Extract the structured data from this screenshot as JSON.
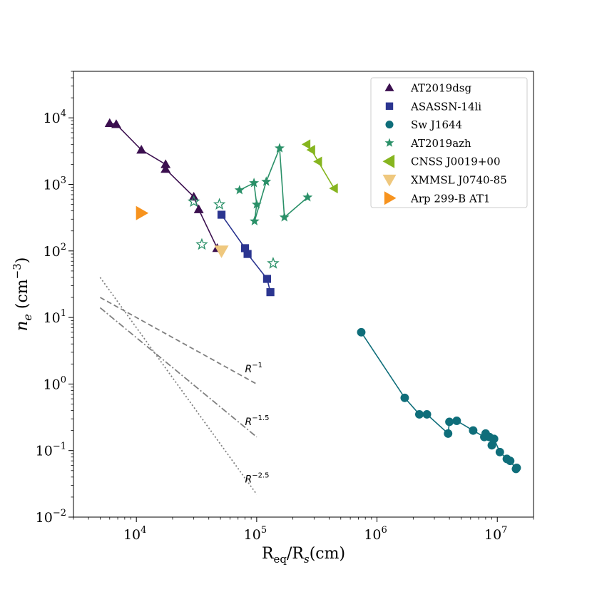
{
  "chart_data": {
    "type": "scatter",
    "x_label": "R_eq/R_s(cm)",
    "y_label": "n_e (cm^-3)",
    "x_scale": "log",
    "y_scale": "log",
    "xlim": [
      3000,
      20000000
    ],
    "ylim": [
      0.01,
      50000
    ],
    "grid": false,
    "legend_position": "top-right",
    "x_ticks": [
      {
        "value": 10000,
        "base": "10",
        "exp": "4"
      },
      {
        "value": 100000,
        "base": "10",
        "exp": "5"
      },
      {
        "value": 1000000,
        "base": "10",
        "exp": "6"
      },
      {
        "value": 10000000,
        "base": "10",
        "exp": "7"
      }
    ],
    "y_ticks": [
      {
        "value": 0.01,
        "base": "10",
        "exp": "−2"
      },
      {
        "value": 0.1,
        "base": "10",
        "exp": "−1"
      },
      {
        "value": 1,
        "base": "10",
        "exp": "0"
      },
      {
        "value": 10,
        "base": "10",
        "exp": "1"
      },
      {
        "value": 100,
        "base": "10",
        "exp": "2"
      },
      {
        "value": 1000,
        "base": "10",
        "exp": "3"
      },
      {
        "value": 10000,
        "base": "10",
        "exp": "4"
      }
    ],
    "series": [
      {
        "name": "AT2019dsg",
        "color": "#3b0f4f",
        "marker": "triangle-up",
        "line": true,
        "points": [
          [
            6000,
            8300
          ],
          [
            6800,
            8000
          ],
          [
            11000,
            3300
          ],
          [
            17500,
            2000
          ],
          [
            17500,
            1700
          ],
          [
            30000,
            650
          ],
          [
            33000,
            420
          ],
          [
            47000,
            110
          ]
        ]
      },
      {
        "name": "ASASSN-14li",
        "color": "#2b3590",
        "marker": "square",
        "line": true,
        "points": [
          [
            51000,
            350
          ],
          [
            80000,
            110
          ],
          [
            84000,
            90
          ],
          [
            122000,
            38
          ],
          [
            130000,
            24
          ]
        ]
      },
      {
        "name": "Sw J1644",
        "color": "#0f6e7a",
        "marker": "circle",
        "line": true,
        "points": [
          [
            740000,
            6
          ],
          [
            1700000,
            0.62
          ],
          [
            2250000,
            0.35
          ],
          [
            2600000,
            0.35
          ],
          [
            3900000,
            0.18
          ],
          [
            4000000,
            0.27
          ],
          [
            4600000,
            0.28
          ],
          [
            6300000,
            0.2
          ],
          [
            7800000,
            0.16
          ],
          [
            8000000,
            0.18
          ],
          [
            8600000,
            0.16
          ],
          [
            9000000,
            0.12
          ],
          [
            9400000,
            0.15
          ],
          [
            10500000,
            0.095
          ],
          [
            12000000,
            0.075
          ],
          [
            12800000,
            0.07
          ],
          [
            14300000,
            0.053
          ],
          [
            14500000,
            0.055
          ]
        ]
      },
      {
        "name": "AT2019azh",
        "color": "#2a9068",
        "marker": "star",
        "line": true,
        "points": [
          [
            72000,
            820
          ],
          [
            95000,
            1050
          ],
          [
            100000,
            500
          ],
          [
            96000,
            280
          ],
          [
            120000,
            1100
          ],
          [
            155000,
            3500
          ],
          [
            170000,
            320
          ],
          [
            265000,
            640
          ]
        ]
      },
      {
        "name": "AT2019azh (open)",
        "color": "#2a9068",
        "marker": "star-open",
        "line": false,
        "points": [
          [
            30000,
            550
          ],
          [
            49000,
            500
          ],
          [
            35000,
            125
          ],
          [
            137000,
            65
          ]
        ]
      },
      {
        "name": "CNSS J0019+00",
        "color": "#86b51f",
        "marker": "triangle-left",
        "line": true,
        "points": [
          [
            260000,
            4000
          ],
          [
            285000,
            3300
          ],
          [
            325000,
            2200
          ],
          [
            440000,
            870
          ]
        ]
      },
      {
        "name": "XMMSL J0740-85",
        "color": "#efc87e",
        "marker": "triangle-down",
        "line": false,
        "points": [
          [
            51000,
            100
          ]
        ]
      },
      {
        "name": "Arp 299-B AT1",
        "color": "#f7931e",
        "marker": "triangle-right",
        "line": false,
        "points": [
          [
            11000,
            370
          ]
        ]
      }
    ],
    "reference_lines": [
      {
        "label": "R",
        "power": "−1",
        "style": "dashed",
        "points": [
          [
            5000,
            20
          ],
          [
            100000,
            1
          ]
        ],
        "label_at": [
          80000,
          1.5
        ]
      },
      {
        "label": "R",
        "power": "−1.5",
        "style": "dashdot",
        "points": [
          [
            5000,
            14
          ],
          [
            100000,
            0.16
          ]
        ],
        "label_at": [
          80000,
          0.24
        ]
      },
      {
        "label": "R",
        "power": "−2.5",
        "style": "dotted",
        "points": [
          [
            5000,
            40
          ],
          [
            100000,
            0.022
          ]
        ],
        "label_at": [
          80000,
          0.033
        ]
      }
    ],
    "legend": [
      {
        "label": "AT2019dsg",
        "color": "#3b0f4f",
        "marker": "triangle-up"
      },
      {
        "label": "ASASSN-14li",
        "color": "#2b3590",
        "marker": "square"
      },
      {
        "label": "Sw J1644",
        "color": "#0f6e7a",
        "marker": "circle"
      },
      {
        "label": "AT2019azh",
        "color": "#2a9068",
        "marker": "star"
      },
      {
        "label": "CNSS J0019+00",
        "color": "#86b51f",
        "marker": "triangle-left"
      },
      {
        "label": "XMMSL J0740-85",
        "color": "#efc87e",
        "marker": "triangle-down"
      },
      {
        "label": "Arp 299-B AT1",
        "color": "#f7931e",
        "marker": "triangle-right"
      }
    ]
  }
}
